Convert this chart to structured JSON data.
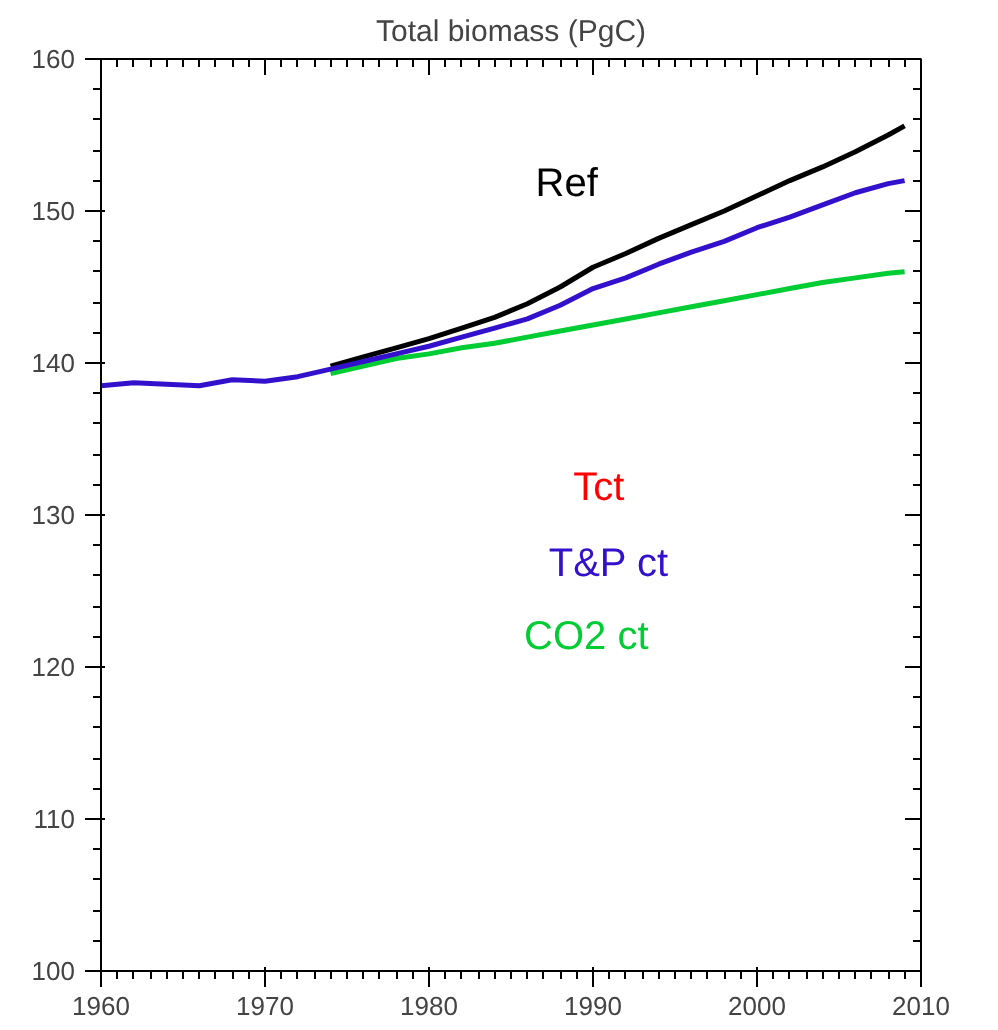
{
  "chart_data": {
    "type": "line",
    "title": "Total biomass (PgC)",
    "x": [
      1960,
      1962,
      1964,
      1966,
      1968,
      1970,
      1972,
      1974,
      1976,
      1978,
      1980,
      1982,
      1984,
      1986,
      1988,
      1990,
      1992,
      1994,
      1996,
      1998,
      2000,
      2002,
      2004,
      2006,
      2008,
      2009
    ],
    "xlim": [
      1960,
      2010
    ],
    "xticks": [
      1960,
      1970,
      1980,
      1990,
      2000,
      2010
    ],
    "ylim": [
      100,
      160
    ],
    "yticks": [
      100,
      110,
      120,
      130,
      140,
      150,
      160
    ],
    "grid": false,
    "legend": false,
    "series": [
      {
        "name": "Ref",
        "color": "#000000",
        "values": [
          null,
          null,
          null,
          null,
          null,
          null,
          null,
          139.8,
          140.4,
          141.0,
          141.6,
          142.3,
          143.0,
          143.9,
          145.0,
          146.3,
          147.2,
          148.2,
          149.1,
          150.0,
          151.0,
          152.0,
          152.9,
          153.9,
          155.0,
          155.6
        ]
      },
      {
        "name": "CO2 ct",
        "color": "#00cc33",
        "values": [
          null,
          null,
          null,
          null,
          null,
          null,
          null,
          139.3,
          139.8,
          140.3,
          140.6,
          141.0,
          141.3,
          141.7,
          142.1,
          142.5,
          142.9,
          143.3,
          143.7,
          144.1,
          144.5,
          144.9,
          145.3,
          145.6,
          145.9,
          146.0
        ]
      },
      {
        "name": "Tct",
        "color": "#ff0000",
        "values": [
          null,
          null,
          null,
          null,
          null,
          null,
          null,
          null,
          null,
          null,
          null,
          null,
          null,
          null,
          null,
          null,
          null,
          null,
          null,
          null,
          null,
          null,
          null,
          null,
          null,
          null
        ]
      },
      {
        "name": "T&P ct",
        "color": "#3311cc",
        "values": [
          138.5,
          138.7,
          138.6,
          138.5,
          138.9,
          138.8,
          139.1,
          139.6,
          140.1,
          140.6,
          141.1,
          141.7,
          142.3,
          142.9,
          143.8,
          144.9,
          145.6,
          146.5,
          147.3,
          148.0,
          148.9,
          149.6,
          150.4,
          151.2,
          151.8,
          152.0
        ]
      }
    ]
  }
}
